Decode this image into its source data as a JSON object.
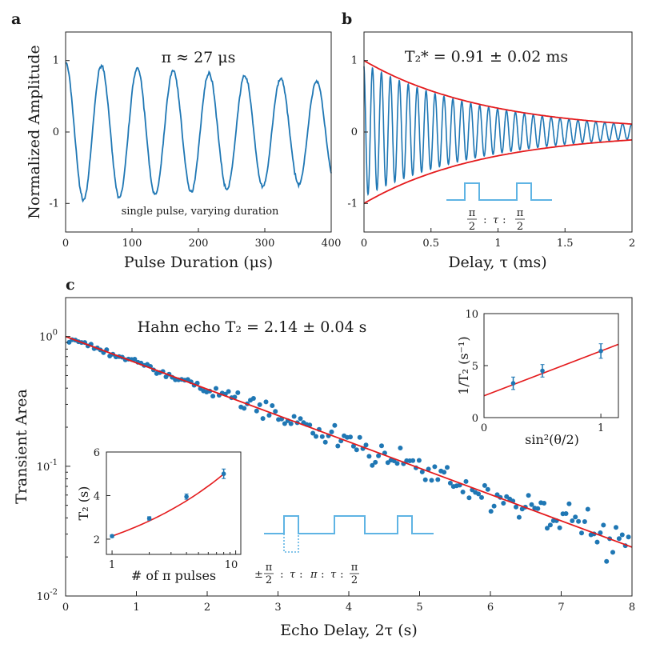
{
  "chart_data": [
    {
      "panel": "a",
      "type": "line",
      "annotation": "π ≈ 27 μs",
      "subtitle": "single pulse, varying duration",
      "xlabel": "Pulse Duration (μs)",
      "ylabel": "Normalized Amplitude",
      "xlim": [
        0,
        400
      ],
      "ylim": [
        -1.4,
        1.4
      ],
      "xticks": [
        0,
        100,
        200,
        300,
        400
      ],
      "yticks": [
        -1,
        0,
        1
      ],
      "xtick_labels": [
        "0",
        "100",
        "200",
        "300",
        "400"
      ],
      "ytick_labels": [
        "-1",
        "0",
        "1"
      ],
      "series": [
        {
          "name": "data",
          "color": "#1f77b4",
          "model": "decaying cosine",
          "period": 54,
          "amplitude_start": 0.97,
          "amplitude_end": 0.7,
          "x_range": [
            0,
            400
          ]
        }
      ]
    },
    {
      "panel": "b",
      "type": "line",
      "annotation": "T₂* = 0.91 ± 0.02 ms",
      "xlabel": "Delay, τ (ms)",
      "xlim": [
        0,
        2
      ],
      "ylim": [
        -1.4,
        1.4
      ],
      "xticks": [
        0,
        0.5,
        1,
        1.5,
        2
      ],
      "yticks": [
        -1,
        0,
        1
      ],
      "xtick_labels": [
        "0",
        "0.5",
        "1",
        "1.5",
        "2"
      ],
      "ytick_labels": [
        "-1",
        "0",
        "1"
      ],
      "pulse_label": "π/2 : τ : π/2",
      "pulse_label_parts": {
        "half_pi_num": "π",
        "half_pi_den": "2",
        "sep": " : ",
        "tau": "τ"
      },
      "series": [
        {
          "name": "data",
          "color": "#1f77b4",
          "model": "ramsey fringes",
          "oscillations_per_ms": 15,
          "x_range": [
            0,
            2
          ]
        },
        {
          "name": "envelope",
          "color": "#e41a1c",
          "model": "exp(-τ/T2*)",
          "T2_star_ms": 0.91
        }
      ]
    },
    {
      "panel": "c",
      "type": "scatter",
      "annotation": "Hahn echo T₂ = 2.14 ± 0.04 s",
      "xlabel": "Echo Delay, 2τ (s)",
      "ylabel": "Transient Area",
      "xlim": [
        0,
        8
      ],
      "ylim_log10": [
        -2,
        0.3
      ],
      "xticks": [
        0,
        1,
        2,
        3,
        4,
        5,
        6,
        7,
        8
      ],
      "xtick_labels": [
        "0",
        "1",
        "2",
        "3",
        "4",
        "5",
        "6",
        "7",
        "8"
      ],
      "ytick_labels": [
        {
          "base": "10",
          "exp": "-2",
          "value": 0.01
        },
        {
          "base": "10",
          "exp": "-1",
          "value": 0.1
        },
        {
          "base": "10",
          "exp": "0",
          "value": 1
        }
      ],
      "fit": {
        "color": "#e41a1c",
        "model": "A·exp(-t/T2)",
        "A": 1.0,
        "T2_s": 2.14
      },
      "scatter_color": "#1f77b4",
      "pulse_label": "±π/2 : τ : π : τ : π/2",
      "pulse_label_parts": {
        "pm": "±",
        "pi": "π",
        "two": "2",
        "sep": " : ",
        "tau": "τ"
      }
    },
    {
      "panel": "c-inset-left",
      "type": "scatter",
      "xlabel": "# of π pulses",
      "ylabel": "T₂ (s)",
      "xscale": "log",
      "xlim": [
        0.9,
        11
      ],
      "ylim": [
        1.3,
        6
      ],
      "xtick_labels": [
        "1",
        "10"
      ],
      "ytick_labels": [
        "2",
        "4",
        "6"
      ],
      "points": [
        {
          "x": 1,
          "y": 2.14,
          "err": 0.06
        },
        {
          "x": 2,
          "y": 2.95,
          "err": 0.08
        },
        {
          "x": 4,
          "y": 3.95,
          "err": 0.12
        },
        {
          "x": 8,
          "y": 5.0,
          "err": 0.22
        }
      ],
      "fit_color": "#e41a1c",
      "point_color": "#1f77b4"
    },
    {
      "panel": "c-inset-right",
      "type": "scatter",
      "xlabel": "sin²(θ/2)",
      "ylabel": "1/T₂ (s⁻¹)",
      "xlim": [
        0,
        1.15
      ],
      "ylim": [
        0,
        10
      ],
      "xtick_labels": [
        "0",
        "1"
      ],
      "ytick_labels": [
        "0",
        "5",
        "10"
      ],
      "points": [
        {
          "x": 0.25,
          "y": 3.3,
          "err": 0.6
        },
        {
          "x": 0.5,
          "y": 4.5,
          "err": 0.6
        },
        {
          "x": 1.0,
          "y": 6.4,
          "err": 0.7
        }
      ],
      "fit": {
        "intercept": 2.1,
        "slope": 4.3
      },
      "fit_color": "#e41a1c",
      "point_color": "#1f77b4"
    }
  ],
  "pulse_diagram_color": "#5fb4e4"
}
